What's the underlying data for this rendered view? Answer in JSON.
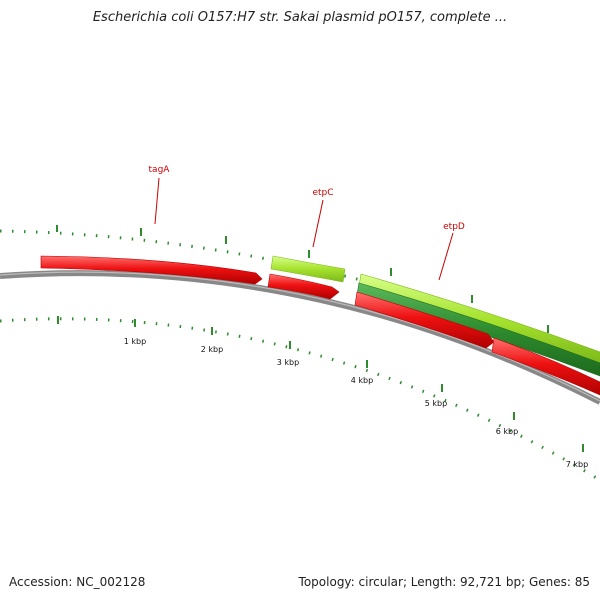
{
  "title": "Escherichia coli O157:H7 str. Sakai plasmid pO157, complete ...",
  "footer": {
    "accession_label": "Accession:",
    "accession": "NC_002128",
    "topology_label": "Topology:",
    "topology": "circular",
    "length_label": "Length:",
    "length": "92,721 bp",
    "genes_label": "Genes:",
    "genes": "85",
    "left_text": "Accession: NC_002128",
    "right_text": "Topology: circular; Length: 92,721 bp; Genes: 85"
  },
  "map": {
    "backbone_color": "#888888",
    "tick_color": "#2e8b2e",
    "label_color": "#cc0000",
    "gene_labels": [
      "tagA",
      "etpC",
      "etpD"
    ],
    "scale_labels": [
      "1 kbp",
      "2 kbp",
      "3 kbp",
      "4 kbp",
      "5 kbp",
      "6 kbp",
      "7 kbp"
    ],
    "features": [
      {
        "name": "tagA",
        "type": "CDS",
        "color": "#ee1111",
        "strand": "+"
      },
      {
        "name": "etpC",
        "type": "gene",
        "color": "#a6e22e",
        "strand": "+"
      },
      {
        "name": "etpC",
        "type": "CDS",
        "color": "#ee1111",
        "strand": "+"
      },
      {
        "name": "etpD",
        "type": "gene",
        "color": "#a6e22e",
        "strand": "+"
      },
      {
        "name": "etpD",
        "type": "CDS",
        "color": "#2e8b2e",
        "strand": "+"
      },
      {
        "name": "",
        "type": "CDS",
        "color": "#ee1111",
        "strand": "+"
      },
      {
        "name": "",
        "type": "CDS",
        "color": "#ee1111",
        "strand": "+"
      }
    ]
  }
}
